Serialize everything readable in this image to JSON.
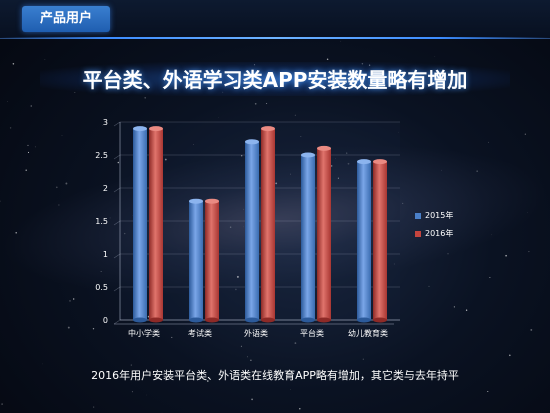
{
  "header": {
    "tab_label": "产品用户"
  },
  "title": "平台类、外语学习类APP安装数量略有增加",
  "caption": "2016年用户安装平台类、外语类在线教育APP略有增加，其它类与去年持平",
  "colors": {
    "series_2015": "#4a7fc8",
    "series_2016": "#c4443e",
    "accent": "#3c8cff"
  },
  "chart_data": {
    "type": "bar",
    "categories": [
      "中小学类",
      "考试类",
      "外语类",
      "平台类",
      "幼儿教育类"
    ],
    "series": [
      {
        "name": "2015年",
        "values": [
          2.9,
          1.8,
          2.7,
          2.5,
          2.4
        ]
      },
      {
        "name": "2016年",
        "values": [
          2.9,
          1.8,
          2.9,
          2.6,
          2.4
        ]
      }
    ],
    "ylim": [
      0,
      3
    ],
    "yticks": [
      "0",
      "0.5",
      "1",
      "1.5",
      "2",
      "2.5",
      "3"
    ],
    "grid": true,
    "legend_position": "right"
  }
}
